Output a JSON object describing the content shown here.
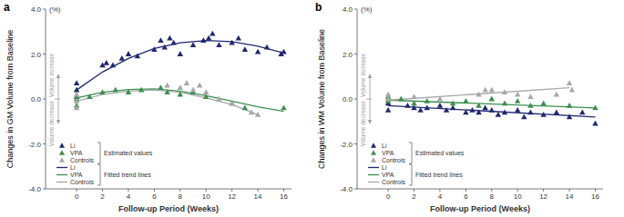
{
  "chart_data": [
    {
      "type": "scatter",
      "title": "a",
      "y_label": "Changes in GM Volume from Baseline",
      "y_unit": "(%)",
      "x_label": "Follow-up Period (Weeks)",
      "xlim": [
        -2.4,
        16.6
      ],
      "ylim": [
        -4,
        4
      ],
      "xticks": [
        0,
        2,
        4,
        6,
        8,
        10,
        12,
        14,
        16
      ],
      "yticks": [
        {
          "value": -4,
          "label": "-4.0"
        },
        {
          "value": -2,
          "label": "-2.0"
        },
        {
          "value": 0,
          "label": "0.0"
        },
        {
          "value": 2,
          "label": "2.0"
        },
        {
          "value": 4,
          "label": "4.0"
        }
      ],
      "annotations": [
        "Volume increase",
        "Volume decrease"
      ],
      "legend_titles": [
        "Estimated values",
        "Fitted trend lines"
      ],
      "legend": "lower left",
      "series": [
        {
          "name": "Li",
          "type": "scatter",
          "marker": "triangle",
          "color": "#1f2870",
          "x": [
            0,
            0,
            0,
            2,
            2.3,
            2.8,
            3.5,
            4,
            4.7,
            6,
            6.5,
            6.8,
            7.2,
            7.5,
            8,
            9,
            9.8,
            10.2,
            10.5,
            11,
            12,
            12.5,
            13,
            14,
            14.7,
            15.8,
            16
          ],
          "values": [
            0.7,
            0.4,
            0.1,
            1.5,
            1.6,
            1.5,
            1.8,
            2.0,
            1.9,
            2.2,
            2.6,
            2.3,
            2.7,
            2.5,
            2.0,
            2.4,
            2.6,
            2.7,
            2.9,
            2.4,
            2.5,
            2.7,
            2.2,
            2.1,
            2.3,
            2.0,
            2.1
          ]
        },
        {
          "name": "VPA",
          "type": "scatter",
          "marker": "triangle",
          "color": "#3b8f4e",
          "x": [
            0,
            0,
            0,
            1,
            2,
            3,
            4,
            5,
            6.5,
            7,
            8,
            9,
            10,
            12,
            13,
            16
          ],
          "values": [
            0.0,
            -0.3,
            0.1,
            0.1,
            0.3,
            0.4,
            0.3,
            0.4,
            0.5,
            0.3,
            0.2,
            0.3,
            0.1,
            -0.2,
            -0.4,
            -0.4
          ]
        },
        {
          "name": "Controls",
          "type": "scatter",
          "marker": "triangle",
          "color": "#a8a8a8",
          "x": [
            0,
            0,
            0,
            7,
            8,
            8.5,
            9,
            9.5,
            10,
            11,
            12,
            13.5,
            14
          ],
          "values": [
            -0.1,
            0.2,
            -0.4,
            0.6,
            0.5,
            0.7,
            0.4,
            0.6,
            0.3,
            0.0,
            -0.2,
            -0.6,
            -0.7
          ]
        },
        {
          "name": "Li",
          "type": "line",
          "line_style": "solid",
          "color": "#1f2870",
          "x": [
            0,
            2,
            4,
            6,
            8,
            10,
            12,
            14,
            16
          ],
          "values": [
            0.4,
            1.2,
            1.8,
            2.25,
            2.5,
            2.6,
            2.55,
            2.35,
            2.05
          ]
        },
        {
          "name": "VPA",
          "type": "line",
          "line_style": "solid",
          "color": "#3b8f4e",
          "x": [
            0,
            2,
            4,
            6,
            8,
            10,
            12,
            14,
            16
          ],
          "values": [
            0.05,
            0.3,
            0.42,
            0.45,
            0.35,
            0.15,
            -0.1,
            -0.35,
            -0.55
          ]
        },
        {
          "name": "Controls",
          "type": "line",
          "line_style": "solid",
          "color": "#a8a8a8",
          "x": [
            0,
            2,
            4,
            6,
            8,
            10,
            12,
            14
          ],
          "values": [
            -0.1,
            0.2,
            0.35,
            0.4,
            0.3,
            0.05,
            -0.25,
            -0.7
          ]
        }
      ]
    },
    {
      "type": "scatter",
      "title": "b",
      "y_label": "Changes in WM Volume from Baseline",
      "y_unit": "(%)",
      "x_label": "Follow-up Period (Weeks)",
      "xlim": [
        -2.4,
        16.6
      ],
      "ylim": [
        -4,
        4
      ],
      "xticks": [
        0,
        2,
        4,
        6,
        8,
        10,
        12,
        14,
        16
      ],
      "yticks": [
        {
          "value": -4,
          "label": "-4.0"
        },
        {
          "value": -2,
          "label": "-2.0"
        },
        {
          "value": 0,
          "label": "0.0"
        },
        {
          "value": 2,
          "label": "2.0"
        },
        {
          "value": 4,
          "label": "4.0"
        }
      ],
      "annotations": [
        "Volume increase",
        "Volume decrease"
      ],
      "legend_titles": [
        "Estimated values",
        "Fitted trend lines"
      ],
      "legend": "lower left",
      "series": [
        {
          "name": "Li",
          "type": "scatter",
          "marker": "triangle",
          "color": "#1f2870",
          "x": [
            0,
            0,
            1.5,
            2,
            2.5,
            3,
            4,
            4.5,
            5,
            6,
            6.5,
            7,
            7.5,
            8,
            8.5,
            9,
            10,
            10.5,
            11,
            12,
            13,
            14,
            15,
            16
          ],
          "values": [
            -0.2,
            -0.5,
            -0.3,
            -0.4,
            -0.5,
            -0.4,
            -0.3,
            -0.5,
            -0.4,
            -0.6,
            -0.5,
            -0.6,
            -0.4,
            -0.5,
            -0.7,
            -0.6,
            -0.5,
            -0.8,
            -0.6,
            -0.7,
            -0.6,
            -0.8,
            -0.6,
            -1.1
          ]
        },
        {
          "name": "VPA",
          "type": "scatter",
          "marker": "triangle",
          "color": "#3b8f4e",
          "x": [
            0,
            0,
            0,
            1,
            2,
            3,
            5,
            6,
            7,
            8,
            9,
            10,
            11,
            12,
            14,
            16
          ],
          "values": [
            0.1,
            -0.1,
            0.0,
            0.0,
            -0.2,
            -0.1,
            -0.2,
            -0.1,
            -0.3,
            0.0,
            -0.2,
            -0.1,
            -0.3,
            -0.2,
            -0.3,
            -0.4
          ]
        },
        {
          "name": "Controls",
          "type": "scatter",
          "marker": "triangle",
          "color": "#a8a8a8",
          "x": [
            0,
            0,
            2,
            4,
            7,
            7.5,
            8,
            9,
            10,
            11,
            13,
            14,
            14.2
          ],
          "values": [
            0.2,
            0.0,
            0.1,
            0.0,
            0.2,
            0.4,
            0.4,
            0.3,
            0.2,
            0.1,
            0.2,
            0.7,
            0.4
          ]
        },
        {
          "name": "Li",
          "type": "line",
          "line_style": "solid",
          "color": "#1f2870",
          "x": [
            0,
            16
          ],
          "values": [
            -0.3,
            -0.8
          ]
        },
        {
          "name": "VPA",
          "type": "line",
          "line_style": "solid",
          "color": "#3b8f4e",
          "x": [
            0,
            16
          ],
          "values": [
            -0.05,
            -0.4
          ]
        },
        {
          "name": "Controls",
          "type": "line",
          "line_style": "solid",
          "color": "#a8a8a8",
          "x": [
            0,
            14
          ],
          "values": [
            -0.05,
            0.5
          ]
        }
      ]
    }
  ]
}
